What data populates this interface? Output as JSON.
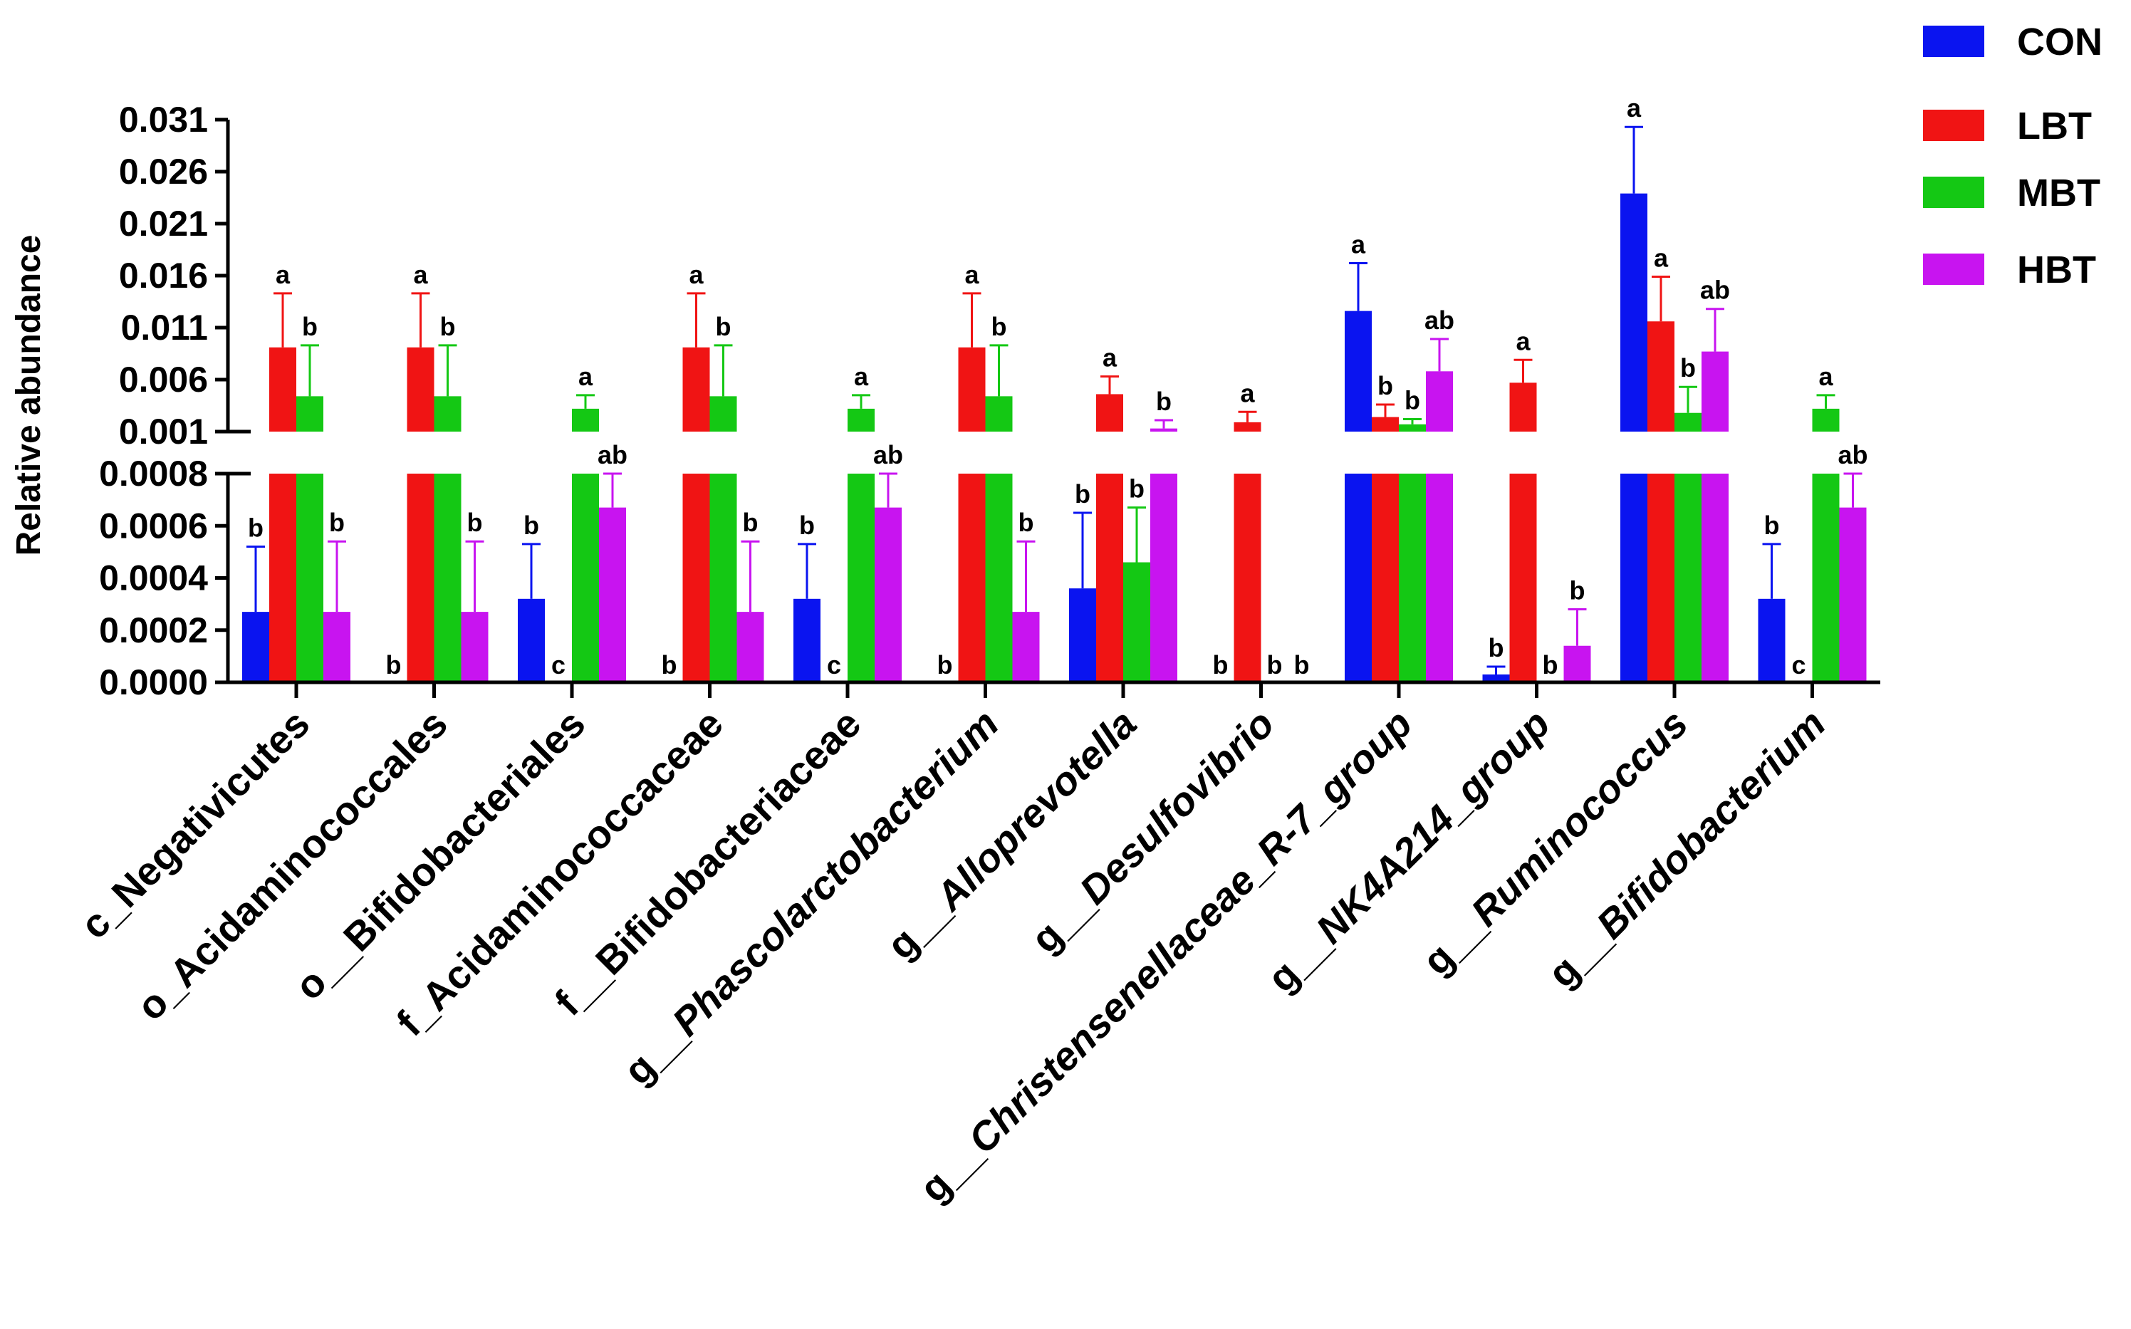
{
  "chart_data": {
    "type": "bar",
    "title": "",
    "xlabel": "",
    "ylabel": "Relative abundance",
    "axis_break": {
      "lower_range": [
        0,
        0.0008
      ],
      "upper_range": [
        0.001,
        0.031
      ]
    },
    "lower_ticks": [
      "0.0000",
      "0.0002",
      "0.0004",
      "0.0006",
      "0.0008"
    ],
    "upper_ticks": [
      "0.001",
      "0.006",
      "0.011",
      "0.016",
      "0.021",
      "0.026",
      "0.031"
    ],
    "legend_position": "top-right",
    "categories": [
      {
        "prefix": "c_",
        "name": "Negativicutes",
        "italic": false
      },
      {
        "prefix": "o_",
        "name": "Acidaminococcales",
        "italic": false
      },
      {
        "prefix": "o__",
        "name": "Bifidobacteriales",
        "italic": false
      },
      {
        "prefix": "f_",
        "name": "Acidaminococcaceae",
        "italic": false
      },
      {
        "prefix": "f__",
        "name": "Bifidobacteriaceae",
        "italic": false
      },
      {
        "prefix": "g__",
        "name": "Phascolarctobacterium",
        "italic": true
      },
      {
        "prefix": "g__",
        "name": "Alloprevotella",
        "italic": true
      },
      {
        "prefix": "g__",
        "name": "Desulfovibrio",
        "italic": true
      },
      {
        "prefix": "g__",
        "name": "Christensenellaceae_R-7_group",
        "italic": true
      },
      {
        "prefix": "g__",
        "name": "NK4A214_group",
        "italic": true
      },
      {
        "prefix": "g__",
        "name": "Ruminococcus",
        "italic": true
      },
      {
        "prefix": "g__",
        "name": "Bifidobacterium",
        "italic": true
      }
    ],
    "series": [
      {
        "name": "CON",
        "color": "#0a14f0",
        "values": [
          0.00027,
          0,
          0.00032,
          0,
          0.00032,
          0,
          0.00036,
          0,
          0.0126,
          3e-05,
          0.0239,
          0.00032
        ],
        "errors": [
          0.00025,
          0,
          0.00021,
          0,
          0.00021,
          0,
          0.00029,
          0,
          0.0046,
          3e-05,
          0.0064,
          0.00021
        ],
        "letters": [
          "b",
          "b",
          "b",
          "b",
          "b",
          "b",
          "b",
          "b",
          "a",
          "b",
          "a",
          "b"
        ]
      },
      {
        "name": "LBT",
        "color": "#f01414",
        "values": [
          0.0091,
          0.0091,
          0,
          0.0091,
          0,
          0.0091,
          0.0046,
          0.0019,
          0.0024,
          0.0057,
          0.0116,
          0
        ],
        "errors": [
          0.0052,
          0.0052,
          0,
          0.0052,
          0,
          0.0052,
          0.0017,
          0.001,
          0.0012,
          0.0022,
          0.0043,
          0
        ],
        "letters": [
          "a",
          "a",
          "c",
          "a",
          "c",
          "a",
          "a",
          "a",
          "b",
          "a",
          "a",
          "c"
        ]
      },
      {
        "name": "MBT",
        "color": "#14c814",
        "values": [
          0.0044,
          0.0044,
          0.0032,
          0.0044,
          0.0032,
          0.0044,
          0.00046,
          0,
          0.0017,
          0,
          0.0028,
          0.0032
        ],
        "errors": [
          0.0049,
          0.0049,
          0.0013,
          0.0049,
          0.0013,
          0.0049,
          0.00021,
          0,
          0.0005,
          0,
          0.0025,
          0.0013
        ],
        "letters": [
          "b",
          "b",
          "a",
          "b",
          "a",
          "b",
          "b",
          "b",
          "b",
          "b",
          "b",
          "a"
        ]
      },
      {
        "name": "HBT",
        "color": "#c814f0",
        "values": [
          0.00027,
          0.00027,
          0.00067,
          0.00027,
          0.00067,
          0.00027,
          0.0013,
          0,
          0.0068,
          0.00014,
          0.0087,
          0.00067
        ],
        "errors": [
          0.00027,
          0.00027,
          0.0002,
          0.00027,
          0.0002,
          0.00027,
          0.0008,
          0,
          0.0031,
          0.00014,
          0.0041,
          0.0002
        ],
        "letters": [
          "b",
          "b",
          "ab",
          "b",
          "ab",
          "b",
          "b",
          "b",
          "ab",
          "b",
          "ab",
          "ab"
        ]
      }
    ]
  }
}
